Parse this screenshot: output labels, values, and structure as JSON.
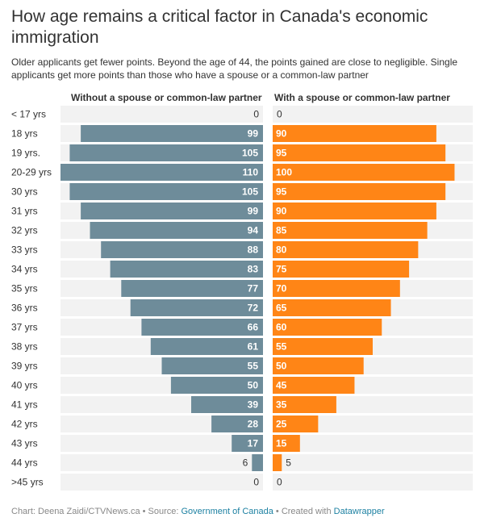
{
  "title": "How age remains a critical factor in Canada's economic immigration",
  "subtitle": "Older applicants get fewer points. Beyond the age of 44, the points gained are close to negligible. Single applicants get more points than those who have a spouse or a common-law partner",
  "footer": {
    "chart_by": "Chart: Deena Zaidi/CTVNews.ca",
    "sep1": " • Source: ",
    "source": "Government of Canada",
    "sep2": " • Created with ",
    "tool": "Datawrapper"
  },
  "colors": {
    "left": "#6e8c9a",
    "right": "#ff8516",
    "track": "#f2f2f2"
  },
  "chart_data": {
    "type": "bar",
    "orientation": "horizontal-split",
    "categories": [
      "< 17 yrs",
      "18 yrs",
      "19 yrs.",
      "20-29 yrs",
      "30 yrs",
      "31 yrs",
      "32 yrs",
      "33 yrs",
      "34 yrs",
      "35 yrs",
      "36 yrs",
      "37 yrs",
      "38 yrs",
      "39 yrs",
      "40 yrs",
      "41 yrs",
      "42 yrs",
      "43 yrs",
      "44 yrs",
      ">45 yrs"
    ],
    "xlim": [
      0,
      110
    ],
    "series": [
      {
        "name": "Without a spouse or common-law partner",
        "values": [
          0,
          99,
          105,
          110,
          105,
          99,
          94,
          88,
          83,
          77,
          72,
          66,
          61,
          55,
          50,
          39,
          28,
          17,
          6,
          0
        ]
      },
      {
        "name": "With a spouse or common-law partner",
        "values": [
          0,
          90,
          95,
          100,
          95,
          90,
          85,
          80,
          75,
          70,
          65,
          60,
          55,
          50,
          45,
          35,
          25,
          15,
          5,
          0
        ]
      }
    ]
  }
}
